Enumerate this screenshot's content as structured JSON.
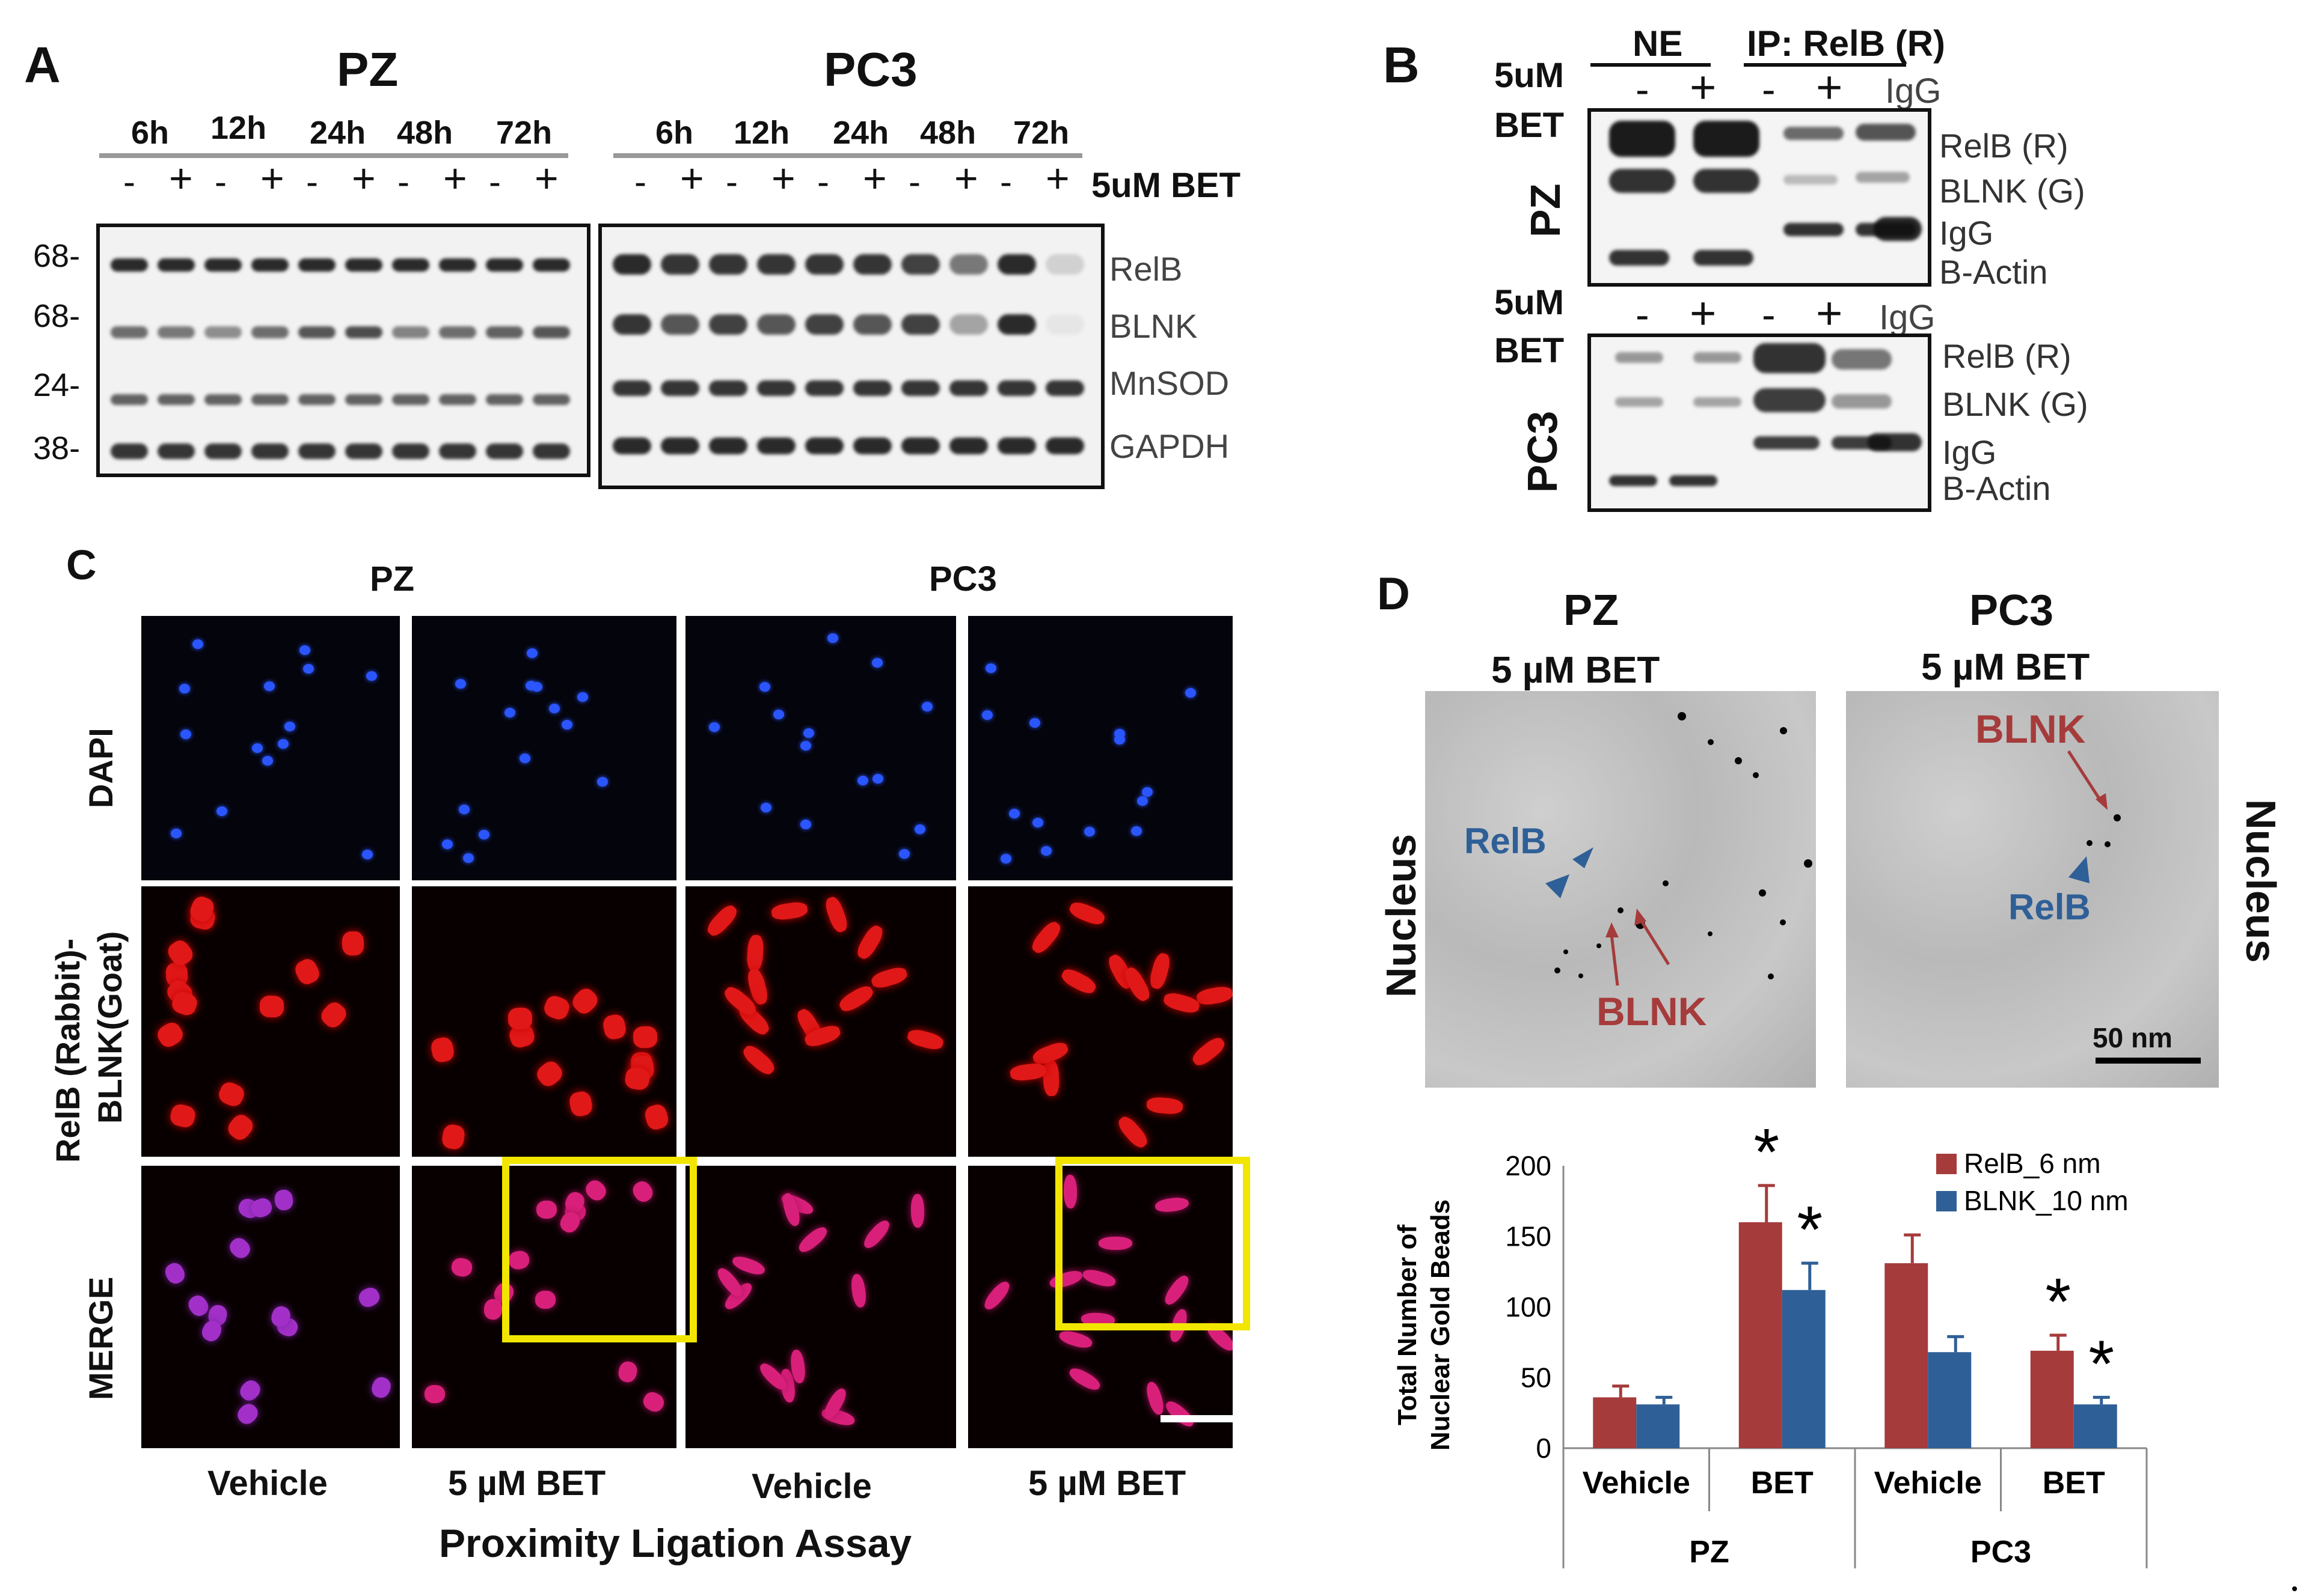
{
  "panel_a": {
    "letter": "A",
    "pz_title": "PZ",
    "pc3_title": "PC3",
    "times": [
      "6h",
      "12h",
      "24h",
      "48h",
      "72h"
    ],
    "minus": "-",
    "plus": "+",
    "treatment_label": "5uM BET",
    "mw_markers": [
      "68-",
      "68-",
      "24-",
      "38-"
    ],
    "bands": [
      "RelB",
      "BLNK",
      "MnSOD",
      "GAPDH"
    ]
  },
  "panel_b": {
    "letter": "B",
    "ne_label": "NE",
    "ip_label": "IP:  RelB  (R)",
    "dose_label": "5uM",
    "bet_label": "BET",
    "minus": "-",
    "plus": "+",
    "igg_col": "IgG",
    "pz_label": "PZ",
    "pc3_label": "PC3",
    "bands": [
      "RelB (R)",
      "BLNK (G)",
      "IgG",
      "B-Actin"
    ]
  },
  "panel_c": {
    "letter": "C",
    "pz_title": "PZ",
    "pc3_title": "PC3",
    "row_labels": [
      "DAPI",
      "RelB (Rabbit)-",
      "BLNK(Goat)",
      "MERGE"
    ],
    "col_labels": [
      "Vehicle",
      "5 µM BET",
      "Vehicle",
      "5 µM BET"
    ],
    "assay_label": "Proximity  Ligation  Assay"
  },
  "panel_d": {
    "letter": "D",
    "pz_title": "PZ",
    "pz_sub": "5 µM BET",
    "pc3_title": "PC3",
    "pc3_sub": "5 µM BET",
    "nucleus": "Nucleus",
    "relb": "RelB",
    "blnk": "BLNK",
    "scale": "50 nm"
  },
  "chart_data": {
    "type": "bar",
    "ylabel_line1": "Total Number of",
    "ylabel_line2": "Nuclear Gold Beads",
    "ylim": [
      0,
      200
    ],
    "yticks": [
      0,
      50,
      100,
      150,
      200
    ],
    "categories": [
      "Vehicle",
      "BET",
      "Vehicle",
      "BET"
    ],
    "groups": [
      "PZ",
      "PC3"
    ],
    "series": [
      {
        "name": "RelB_6 nm",
        "color": "#a63b3b",
        "values": [
          36,
          160,
          131,
          69
        ],
        "errors": [
          8,
          26,
          20,
          11
        ]
      },
      {
        "name": "BLNK_10 nm",
        "color": "#2f5f97",
        "values": [
          31,
          112,
          68,
          31
        ],
        "errors": [
          5,
          19,
          11,
          5
        ]
      }
    ],
    "significance": [
      {
        "series": 0,
        "index": 1,
        "mark": "*"
      },
      {
        "series": 1,
        "index": 1,
        "mark": "*"
      },
      {
        "series": 0,
        "index": 3,
        "mark": "*"
      },
      {
        "series": 1,
        "index": 3,
        "mark": "*"
      }
    ],
    "legend_position": "top-right",
    "grid": false
  }
}
